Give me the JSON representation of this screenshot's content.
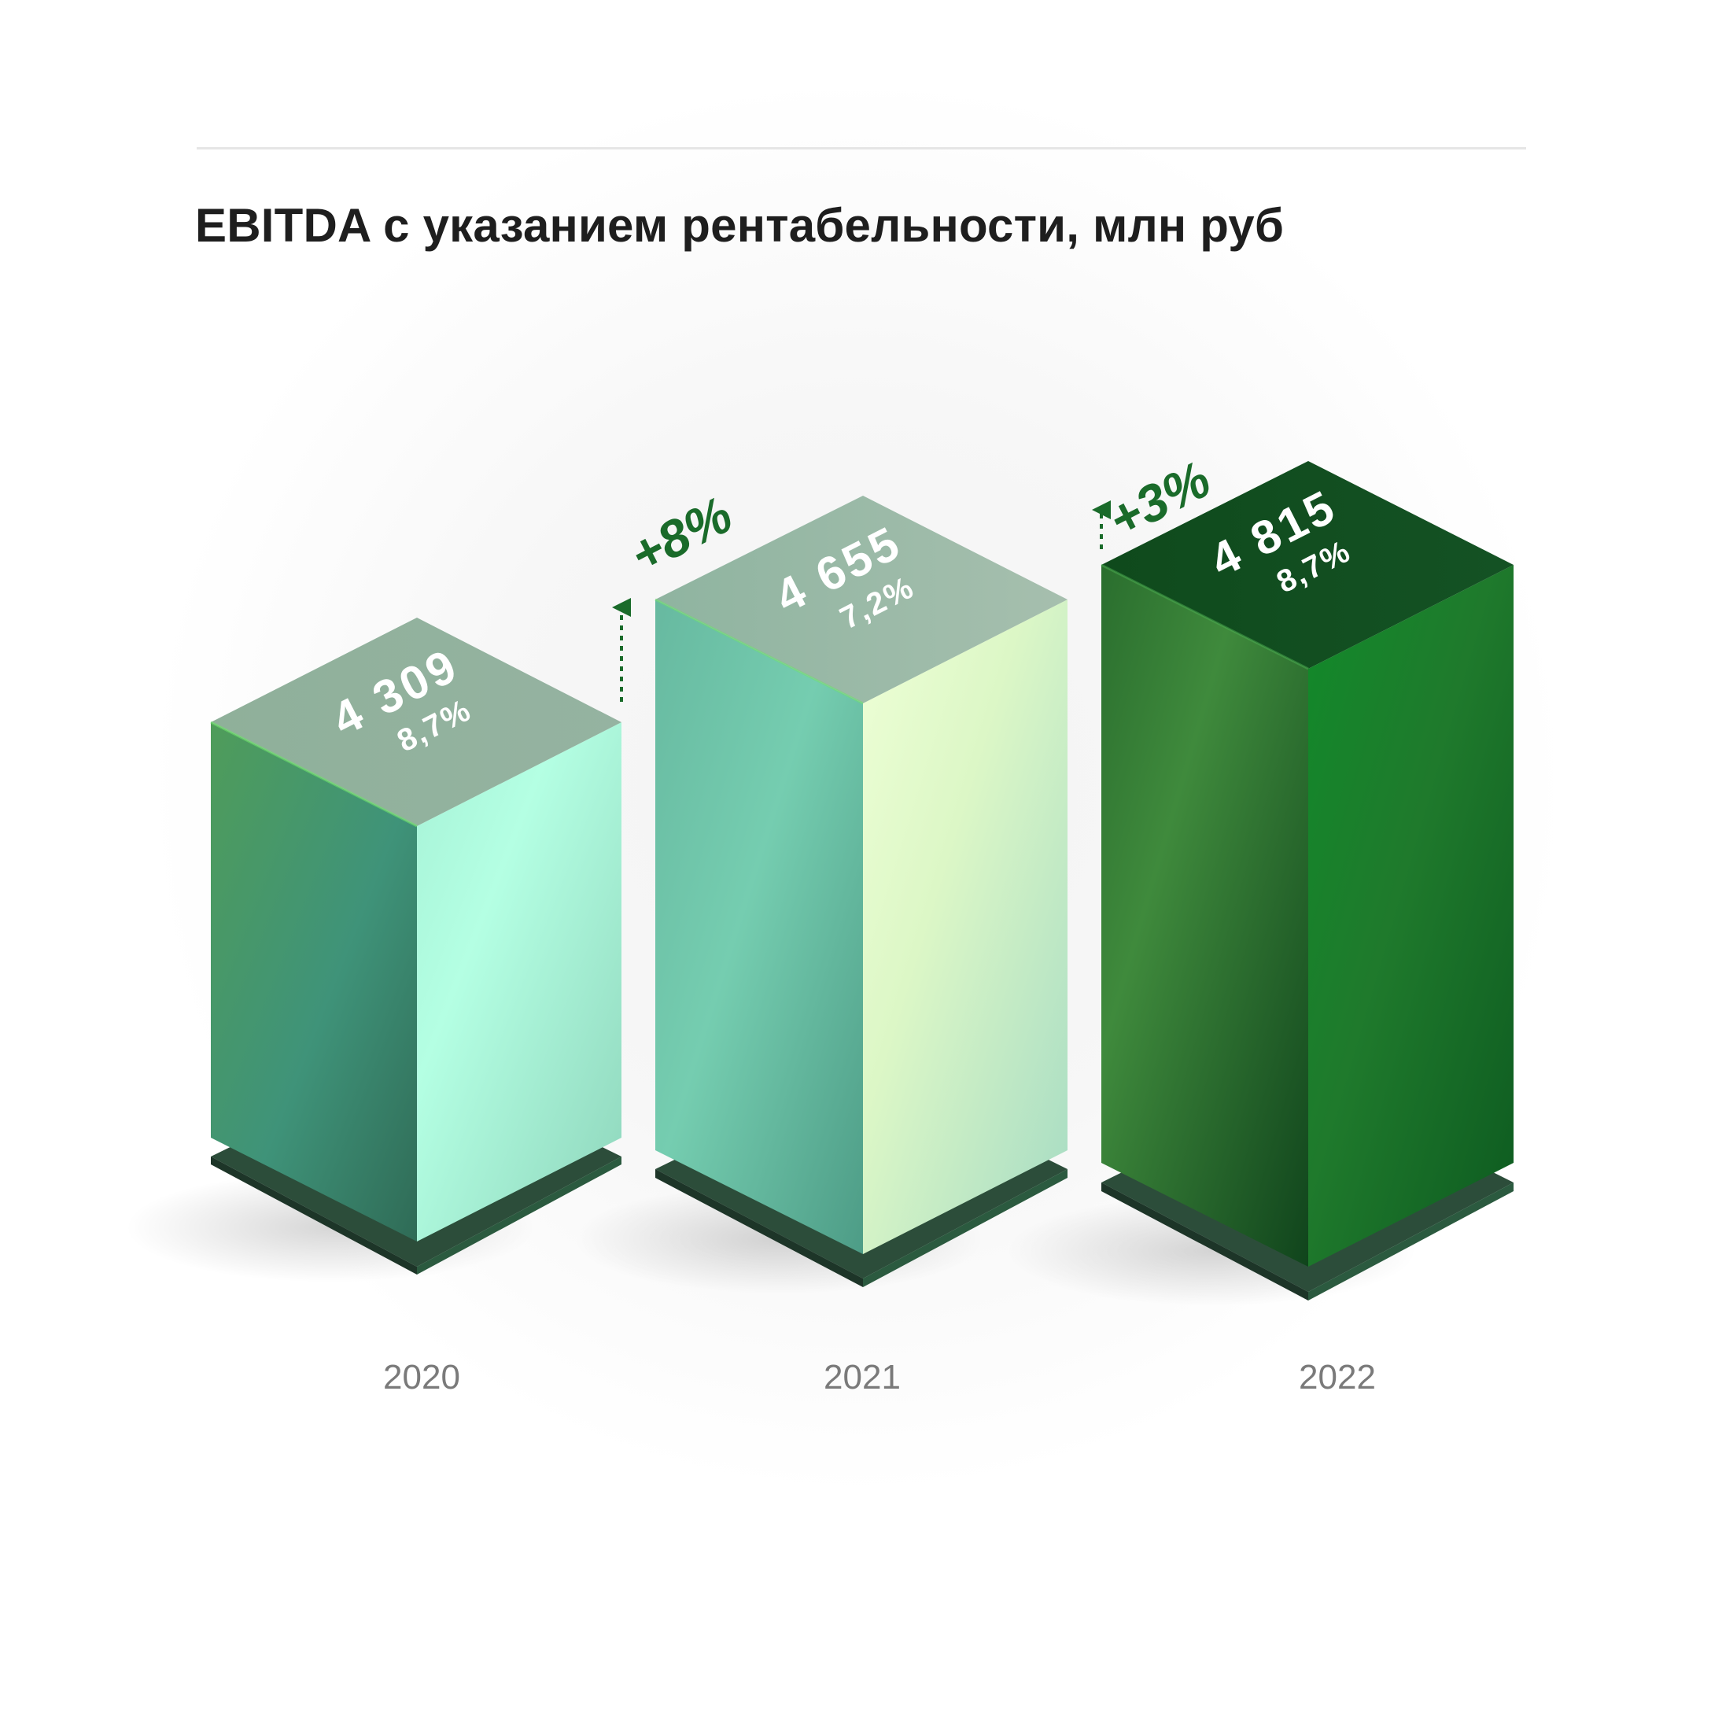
{
  "chart_data": {
    "type": "bar",
    "title": "EBITDA с указанием рентабельности, млн руб",
    "categories": [
      "2020",
      "2021",
      "2022"
    ],
    "series": [
      {
        "values": [
          4309,
          4655,
          4815
        ],
        "value_labels": [
          "4 309",
          "4 655",
          "4 815"
        ],
        "margin_labels": [
          "8,7%",
          "7,2%",
          "8,7%"
        ]
      }
    ],
    "growth_labels": [
      "",
      "+8%",
      "+3%"
    ],
    "colors": {
      "bar_2020": "#6fcfaa",
      "bar_2021": "#a8e6c0",
      "bar_2022": "#1f7a2c",
      "growth_text": "#1a6b2a",
      "title_text": "#1e1e1e",
      "year_text": "#7a7a7a"
    },
    "ylabel": "",
    "xlabel": "",
    "grid": false,
    "style": "isometric-3d-columns"
  }
}
